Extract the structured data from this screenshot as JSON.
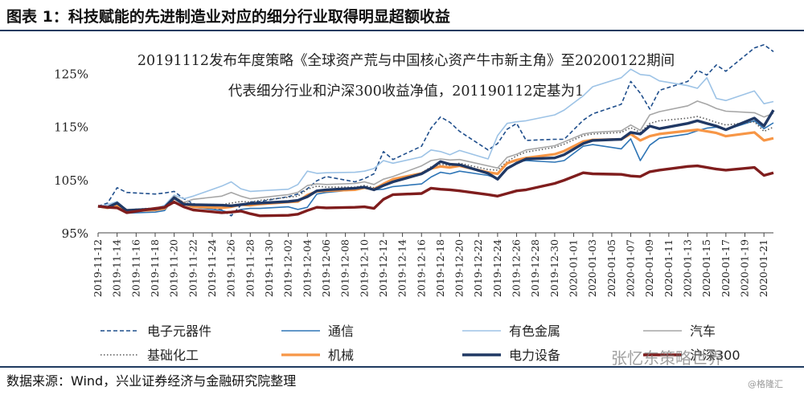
{
  "figure": {
    "title": "图表 1：科技赋能的先进制造业对应的细分行业取得明显超额收益",
    "source": "数据来源：Wind，兴业证券经济与金融研究院整理",
    "watermark": "张忆东策略世界",
    "watermark_small": "@格隆汇"
  },
  "colors": {
    "rule": "#1f3b60",
    "electronics": "#1f4e8c",
    "telecom": "#2e75b6",
    "metals": "#9dc3e6",
    "auto": "#a6a6a6",
    "chemicals": "#595959",
    "machinery": "#f79646",
    "power": "#203864",
    "hs300": "#7f1d1d"
  },
  "chart_data": {
    "type": "line",
    "title": "20191112发布年度策略《全球资产荒与中国核心资产牛市新主角》至20200122期间",
    "subtitle": "代表细分行业和沪深300收益净值，201190112定基为1",
    "xlabel": "",
    "ylabel": "",
    "ylim": [
      95,
      129
    ],
    "yticks": [
      "95%",
      "105%",
      "115%",
      "125%"
    ],
    "ytick_values": [
      95,
      105,
      115,
      125
    ],
    "xticks": [
      "2019-11-12",
      "2019-11-14",
      "2019-11-16",
      "2019-11-18",
      "2019-11-20",
      "2019-11-22",
      "2019-11-24",
      "2019-11-26",
      "2019-11-28",
      "2019-11-30",
      "2019-12-02",
      "2019-12-04",
      "2019-12-06",
      "2019-12-08",
      "2019-12-10",
      "2019-12-12",
      "2019-12-14",
      "2019-12-16",
      "2019-12-18",
      "2019-12-20",
      "2019-12-22",
      "2019-12-24",
      "2019-12-26",
      "2019-12-28",
      "2019-12-30",
      "2020-01-01",
      "2020-01-03",
      "2020-01-05",
      "2020-01-07",
      "2020-01-09",
      "2020-01-11",
      "2020-01-13",
      "2020-01-15",
      "2020-01-17",
      "2020-01-19",
      "2020-01-21"
    ],
    "legend_placement": "bottom",
    "grid": false,
    "series": [
      {
        "key": "electronics",
        "name": "电子元器件",
        "style": "dashed",
        "width": 1.6,
        "x": [
          "2019-11-12",
          "2019-11-13",
          "2019-11-14",
          "2019-11-15",
          "2019-11-18",
          "2019-11-19",
          "2019-11-20",
          "2019-11-21",
          "2019-11-22",
          "2019-11-25",
          "2019-11-26",
          "2019-11-27",
          "2019-11-28",
          "2019-11-29",
          "2019-12-02",
          "2019-12-03",
          "2019-12-04",
          "2019-12-05",
          "2019-12-06",
          "2019-12-09",
          "2019-12-10",
          "2019-12-11",
          "2019-12-12",
          "2019-12-13",
          "2019-12-16",
          "2019-12-17",
          "2019-12-18",
          "2019-12-19",
          "2019-12-20",
          "2019-12-23",
          "2019-12-24",
          "2019-12-25",
          "2019-12-26",
          "2019-12-27",
          "2019-12-30",
          "2019-12-31",
          "2020-01-02",
          "2020-01-03",
          "2020-01-06",
          "2020-01-07",
          "2020-01-08",
          "2020-01-09",
          "2020-01-10",
          "2020-01-13",
          "2020-01-14",
          "2020-01-15",
          "2020-01-16",
          "2020-01-17",
          "2020-01-20",
          "2020-01-21",
          "2020-01-22"
        ],
        "values": [
          100,
          100.6,
          103.5,
          102.6,
          102.3,
          102.5,
          102.8,
          101.4,
          100.5,
          99.3,
          98.2,
          100.2,
          100.8,
          100.9,
          101.8,
          102.3,
          103.3,
          104.8,
          105.6,
          104.6,
          105.2,
          106.1,
          110.3,
          108.8,
          111.3,
          114.7,
          116.8,
          115.8,
          114.1,
          110.6,
          111.8,
          114.5,
          115.6,
          112.4,
          112.6,
          112.6,
          116.2,
          117.4,
          119.2,
          123.5,
          121.3,
          118.3,
          121.8,
          123.5,
          125.6,
          124.7,
          126.6,
          125.4,
          129.8,
          130.4,
          129.1
        ]
      },
      {
        "key": "telecom",
        "name": "通信",
        "style": "solid",
        "width": 1.6,
        "x": [
          "2019-11-12",
          "2019-11-13",
          "2019-11-14",
          "2019-11-15",
          "2019-11-18",
          "2019-11-19",
          "2019-11-20",
          "2019-11-21",
          "2019-11-22",
          "2019-11-25",
          "2019-11-26",
          "2019-11-27",
          "2019-11-28",
          "2019-11-29",
          "2019-12-02",
          "2019-12-03",
          "2019-12-04",
          "2019-12-05",
          "2019-12-06",
          "2019-12-09",
          "2019-12-10",
          "2019-12-11",
          "2019-12-12",
          "2019-12-13",
          "2019-12-16",
          "2019-12-17",
          "2019-12-18",
          "2019-12-19",
          "2019-12-20",
          "2019-12-23",
          "2019-12-24",
          "2019-12-25",
          "2019-12-26",
          "2019-12-27",
          "2019-12-30",
          "2019-12-31",
          "2020-01-02",
          "2020-01-03",
          "2020-01-06",
          "2020-01-07",
          "2020-01-08",
          "2020-01-09",
          "2020-01-10",
          "2020-01-13",
          "2020-01-14",
          "2020-01-15",
          "2020-01-16",
          "2020-01-17",
          "2020-01-20",
          "2020-01-21",
          "2020-01-22"
        ],
        "values": [
          100,
          99.6,
          100.2,
          98.7,
          98.9,
          99.2,
          101.6,
          100.6,
          99.8,
          99.2,
          98.7,
          99.4,
          99.6,
          99.6,
          99.9,
          99.4,
          99.8,
          102.3,
          102.6,
          103.1,
          103.4,
          103.1,
          103.2,
          103.7,
          104.2,
          105.5,
          106.4,
          106.1,
          106.6,
          105.8,
          105.2,
          107.1,
          108.3,
          108.6,
          108.3,
          108.6,
          111.3,
          111.6,
          110.8,
          112.7,
          108.6,
          111.5,
          112.8,
          113.6,
          114.2,
          114.7,
          114.9,
          114.4,
          116.1,
          114.6,
          115.7
        ]
      },
      {
        "key": "metals",
        "name": "有色金属",
        "style": "solid",
        "width": 1.6,
        "x": [
          "2019-11-12",
          "2019-11-13",
          "2019-11-14",
          "2019-11-15",
          "2019-11-18",
          "2019-11-19",
          "2019-11-20",
          "2019-11-21",
          "2019-11-22",
          "2019-11-25",
          "2019-11-26",
          "2019-11-27",
          "2019-11-28",
          "2019-11-29",
          "2019-12-02",
          "2019-12-03",
          "2019-12-04",
          "2019-12-05",
          "2019-12-06",
          "2019-12-09",
          "2019-12-10",
          "2019-12-11",
          "2019-12-12",
          "2019-12-13",
          "2019-12-16",
          "2019-12-17",
          "2019-12-18",
          "2019-12-19",
          "2019-12-20",
          "2019-12-23",
          "2019-12-24",
          "2019-12-25",
          "2019-12-26",
          "2019-12-27",
          "2019-12-30",
          "2019-12-31",
          "2020-01-02",
          "2020-01-03",
          "2020-01-06",
          "2020-01-07",
          "2020-01-08",
          "2020-01-09",
          "2020-01-10",
          "2020-01-13",
          "2020-01-14",
          "2020-01-15",
          "2020-01-16",
          "2020-01-17",
          "2020-01-20",
          "2020-01-21",
          "2020-01-22"
        ],
        "values": [
          100,
          100.3,
          100.9,
          99.3,
          99.6,
          100.2,
          102.1,
          101.4,
          101.9,
          103.8,
          104.6,
          103.3,
          102.8,
          102.9,
          103.2,
          104.1,
          106.6,
          106.2,
          106.3,
          106.4,
          106.6,
          107.1,
          108.6,
          108.1,
          109.3,
          110.6,
          110.3,
          109.7,
          110.5,
          108.9,
          113.3,
          115.6,
          115.9,
          116.1,
          117.2,
          118.1,
          120.8,
          122.5,
          124.2,
          125.8,
          124.8,
          124.6,
          123.6,
          122.7,
          122.2,
          124.2,
          120.3,
          119.9,
          121.7,
          119.3,
          119.7
        ]
      },
      {
        "key": "auto",
        "name": "汽车",
        "style": "solid",
        "width": 1.6,
        "x": [
          "2019-11-12",
          "2019-11-13",
          "2019-11-14",
          "2019-11-15",
          "2019-11-18",
          "2019-11-19",
          "2019-11-20",
          "2019-11-21",
          "2019-11-22",
          "2019-11-25",
          "2019-11-26",
          "2019-11-27",
          "2019-11-28",
          "2019-11-29",
          "2019-12-02",
          "2019-12-03",
          "2019-12-04",
          "2019-12-05",
          "2019-12-06",
          "2019-12-09",
          "2019-12-10",
          "2019-12-11",
          "2019-12-12",
          "2019-12-13",
          "2019-12-16",
          "2019-12-17",
          "2019-12-18",
          "2019-12-19",
          "2019-12-20",
          "2019-12-23",
          "2019-12-24",
          "2019-12-25",
          "2019-12-26",
          "2019-12-27",
          "2019-12-30",
          "2019-12-31",
          "2020-01-02",
          "2020-01-03",
          "2020-01-06",
          "2020-01-07",
          "2020-01-08",
          "2020-01-09",
          "2020-01-10",
          "2020-01-13",
          "2020-01-14",
          "2020-01-15",
          "2020-01-16",
          "2020-01-17",
          "2020-01-20",
          "2020-01-21",
          "2020-01-22"
        ],
        "values": [
          100,
          99.8,
          100.5,
          99.4,
          99.6,
          99.8,
          101.9,
          100.7,
          101.3,
          101.9,
          102.6,
          101.9,
          101.4,
          101.6,
          102.2,
          102.6,
          103.9,
          104.2,
          104.1,
          104.3,
          104.6,
          104.1,
          105.1,
          105.6,
          107.6,
          108.6,
          108.9,
          108.7,
          108.8,
          107.6,
          107.2,
          109.2,
          109.8,
          110.6,
          111.4,
          112.1,
          113.6,
          113.9,
          114.2,
          115.3,
          114.3,
          117.2,
          117.8,
          118.9,
          119.8,
          119.2,
          118.4,
          117.9,
          117.6,
          116.8,
          117.5
        ]
      },
      {
        "key": "chemicals",
        "name": "基础化工",
        "style": "dotted",
        "width": 1.6,
        "x": [
          "2019-11-12",
          "2019-11-13",
          "2019-11-14",
          "2019-11-15",
          "2019-11-18",
          "2019-11-19",
          "2019-11-20",
          "2019-11-21",
          "2019-11-22",
          "2019-11-25",
          "2019-11-26",
          "2019-11-27",
          "2019-11-28",
          "2019-11-29",
          "2019-12-02",
          "2019-12-03",
          "2019-12-04",
          "2019-12-05",
          "2019-12-06",
          "2019-12-09",
          "2019-12-10",
          "2019-12-11",
          "2019-12-12",
          "2019-12-13",
          "2019-12-16",
          "2019-12-17",
          "2019-12-18",
          "2019-12-19",
          "2019-12-20",
          "2019-12-23",
          "2019-12-24",
          "2019-12-25",
          "2019-12-26",
          "2019-12-27",
          "2019-12-30",
          "2019-12-31",
          "2020-01-02",
          "2020-01-03",
          "2020-01-06",
          "2020-01-07",
          "2020-01-08",
          "2020-01-09",
          "2020-01-10",
          "2020-01-13",
          "2020-01-14",
          "2020-01-15",
          "2020-01-16",
          "2020-01-17",
          "2020-01-20",
          "2020-01-21",
          "2020-01-22"
        ],
        "values": [
          100,
          99.9,
          100.2,
          99.3,
          99.7,
          99.9,
          101.8,
          100.7,
          100.4,
          100.3,
          100.6,
          100.9,
          100.8,
          101.1,
          101.7,
          101.9,
          103.2,
          103.8,
          103.6,
          103.6,
          103.9,
          103.5,
          104.1,
          104.5,
          106.3,
          107.4,
          107.9,
          107.7,
          108.1,
          106.9,
          106.8,
          108.4,
          109.5,
          110.2,
          111.1,
          111.7,
          113.3,
          113.6,
          113.9,
          114.8,
          113.9,
          115.6,
          116.1,
          116.6,
          116.9,
          116.4,
          115.8,
          115.3,
          115.9,
          114.1,
          114.9
        ]
      },
      {
        "key": "machinery",
        "name": "机械",
        "style": "solid",
        "width": 3.2,
        "x": [
          "2019-11-12",
          "2019-11-13",
          "2019-11-14",
          "2019-11-15",
          "2019-11-18",
          "2019-11-19",
          "2019-11-20",
          "2019-11-21",
          "2019-11-22",
          "2019-11-25",
          "2019-11-26",
          "2019-11-27",
          "2019-11-28",
          "2019-11-29",
          "2019-12-02",
          "2019-12-03",
          "2019-12-04",
          "2019-12-05",
          "2019-12-06",
          "2019-12-09",
          "2019-12-10",
          "2019-12-11",
          "2019-12-12",
          "2019-12-13",
          "2019-12-16",
          "2019-12-17",
          "2019-12-18",
          "2019-12-19",
          "2019-12-20",
          "2019-12-23",
          "2019-12-24",
          "2019-12-25",
          "2019-12-26",
          "2019-12-27",
          "2019-12-30",
          "2019-12-31",
          "2020-01-02",
          "2020-01-03",
          "2020-01-06",
          "2020-01-07",
          "2020-01-08",
          "2020-01-09",
          "2020-01-10",
          "2020-01-13",
          "2020-01-14",
          "2020-01-15",
          "2020-01-16",
          "2020-01-17",
          "2020-01-20",
          "2020-01-21",
          "2020-01-22"
        ],
        "values": [
          100,
          99.7,
          100.1,
          99.1,
          99.3,
          99.6,
          101.5,
          100.5,
          99.9,
          99.7,
          99.9,
          100.3,
          100.2,
          100.4,
          100.8,
          100.9,
          102.1,
          102.8,
          102.9,
          103.1,
          103.5,
          103.2,
          104.2,
          105.1,
          106.2,
          107.1,
          107.5,
          107.3,
          107.6,
          106.4,
          106.1,
          108.1,
          108.7,
          109.1,
          109.8,
          110.4,
          112.2,
          112.5,
          112.6,
          113.6,
          112.4,
          113.2,
          113.6,
          114.2,
          114.4,
          114.1,
          113.8,
          113.2,
          113.9,
          112.4,
          112.8
        ]
      },
      {
        "key": "power",
        "name": "电力设备",
        "style": "solid",
        "width": 3.4,
        "x": [
          "2019-11-12",
          "2019-11-13",
          "2019-11-14",
          "2019-11-15",
          "2019-11-18",
          "2019-11-19",
          "2019-11-20",
          "2019-11-21",
          "2019-11-22",
          "2019-11-25",
          "2019-11-26",
          "2019-11-27",
          "2019-11-28",
          "2019-11-29",
          "2019-12-02",
          "2019-12-03",
          "2019-12-04",
          "2019-12-05",
          "2019-12-06",
          "2019-12-09",
          "2019-12-10",
          "2019-12-11",
          "2019-12-12",
          "2019-12-13",
          "2019-12-16",
          "2019-12-17",
          "2019-12-18",
          "2019-12-19",
          "2019-12-20",
          "2019-12-23",
          "2019-12-24",
          "2019-12-25",
          "2019-12-26",
          "2019-12-27",
          "2019-12-30",
          "2019-12-31",
          "2020-01-02",
          "2020-01-03",
          "2020-01-06",
          "2020-01-07",
          "2020-01-08",
          "2020-01-09",
          "2020-01-10",
          "2020-01-13",
          "2020-01-14",
          "2020-01-15",
          "2020-01-16",
          "2020-01-17",
          "2020-01-20",
          "2020-01-21",
          "2020-01-22"
        ],
        "values": [
          100,
          99.8,
          100.6,
          99.2,
          99.5,
          99.8,
          101.6,
          100.4,
          100.3,
          100.2,
          100.1,
          100.3,
          100.5,
          100.6,
          100.9,
          101.1,
          101.8,
          102.9,
          103.1,
          103.4,
          103.6,
          103.1,
          103.9,
          104.6,
          106.1,
          107.1,
          108.4,
          107.9,
          107.8,
          106.2,
          105.1,
          107.1,
          108.1,
          108.9,
          109.1,
          109.7,
          111.8,
          112.4,
          112.6,
          113.9,
          113.6,
          115.1,
          114.6,
          115.6,
          116.1,
          115.6,
          115.1,
          114.4,
          116.6,
          115.1,
          118.1
        ]
      },
      {
        "key": "hs300",
        "name": "沪深300",
        "style": "solid",
        "width": 3.4,
        "x": [
          "2019-11-12",
          "2019-11-13",
          "2019-11-14",
          "2019-11-15",
          "2019-11-18",
          "2019-11-19",
          "2019-11-20",
          "2019-11-21",
          "2019-11-22",
          "2019-11-25",
          "2019-11-26",
          "2019-11-27",
          "2019-11-28",
          "2019-11-29",
          "2019-12-02",
          "2019-12-03",
          "2019-12-04",
          "2019-12-05",
          "2019-12-06",
          "2019-12-09",
          "2019-12-10",
          "2019-12-11",
          "2019-12-12",
          "2019-12-13",
          "2019-12-16",
          "2019-12-17",
          "2019-12-18",
          "2019-12-19",
          "2019-12-20",
          "2019-12-23",
          "2019-12-24",
          "2019-12-25",
          "2019-12-26",
          "2019-12-27",
          "2019-12-30",
          "2019-12-31",
          "2020-01-02",
          "2020-01-03",
          "2020-01-06",
          "2020-01-07",
          "2020-01-08",
          "2020-01-09",
          "2020-01-10",
          "2020-01-13",
          "2020-01-14",
          "2020-01-15",
          "2020-01-16",
          "2020-01-17",
          "2020-01-20",
          "2020-01-21",
          "2020-01-22"
        ],
        "values": [
          100,
          99.8,
          99.7,
          98.8,
          99.6,
          99.8,
          100.8,
          99.9,
          99.3,
          98.8,
          98.9,
          99.1,
          98.6,
          98.2,
          98.3,
          98.5,
          99.2,
          99.8,
          99.7,
          99.8,
          99.9,
          99.6,
          101.3,
          102.2,
          102.4,
          103.4,
          103.2,
          103.1,
          102.9,
          102.2,
          101.9,
          102.4,
          102.9,
          103.1,
          104.3,
          104.9,
          106.3,
          106.1,
          106.0,
          105.7,
          105.6,
          106.5,
          106.8,
          107.5,
          107.6,
          107.3,
          107.0,
          106.8,
          107.3,
          105.8,
          106.3
        ]
      }
    ]
  }
}
